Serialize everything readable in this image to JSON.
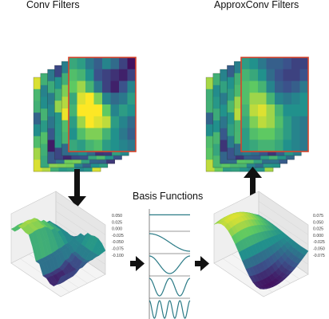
{
  "labels": {
    "conv_filters": "Conv Filters",
    "approx_filters": "ApproxConv Filters",
    "basis_functions": "Basis Functions"
  },
  "left_surface_ticks": [
    "0.050",
    "0.025",
    "0.000",
    "-0.025",
    "-0.050",
    "-0.075",
    "-0.100"
  ],
  "right_surface_ticks": [
    "0.075",
    "0.050",
    "0.025",
    "0.000",
    "-0.025",
    "-0.050",
    "-0.075"
  ],
  "basis_cycles": [
    0,
    1,
    2,
    4,
    8
  ],
  "colors": {
    "filter_border": "#d8442c",
    "arrow": "#111111",
    "basis_line": "#2a7a86",
    "viridis": [
      "#440154",
      "#3b528b",
      "#21918c",
      "#5ec962",
      "#fde725"
    ]
  },
  "filter_grid": [
    [
      0.6,
      0.55,
      0.4,
      0.3,
      0.45,
      0.35,
      0.2,
      0.05
    ],
    [
      0.7,
      0.65,
      0.5,
      0.25,
      0.2,
      0.15,
      0.1,
      0.2
    ],
    [
      0.75,
      0.85,
      0.65,
      0.4,
      0.2,
      0.1,
      0.25,
      0.45
    ],
    [
      0.6,
      0.95,
      1.0,
      0.8,
      0.45,
      0.35,
      0.4,
      0.55
    ],
    [
      0.65,
      1.0,
      1.0,
      1.0,
      0.75,
      0.45,
      0.55,
      0.5
    ],
    [
      0.55,
      0.85,
      1.0,
      0.95,
      0.9,
      0.55,
      0.45,
      0.35
    ],
    [
      0.5,
      0.7,
      0.8,
      0.8,
      0.65,
      0.5,
      0.4,
      0.3
    ],
    [
      0.6,
      0.55,
      0.65,
      0.7,
      0.55,
      0.5,
      0.45,
      0.4
    ]
  ],
  "approx_grid": [
    [
      0.55,
      0.5,
      0.4,
      0.3,
      0.3,
      0.25,
      0.2,
      0.2
    ],
    [
      0.65,
      0.6,
      0.5,
      0.35,
      0.25,
      0.2,
      0.2,
      0.25
    ],
    [
      0.7,
      0.75,
      0.65,
      0.45,
      0.3,
      0.25,
      0.3,
      0.4
    ],
    [
      0.7,
      0.85,
      0.85,
      0.65,
      0.45,
      0.4,
      0.45,
      0.5
    ],
    [
      0.65,
      0.9,
      0.95,
      0.85,
      0.65,
      0.5,
      0.5,
      0.5
    ],
    [
      0.6,
      0.8,
      0.9,
      0.85,
      0.7,
      0.55,
      0.45,
      0.4
    ],
    [
      0.55,
      0.7,
      0.75,
      0.75,
      0.65,
      0.55,
      0.45,
      0.4
    ],
    [
      0.55,
      0.6,
      0.65,
      0.65,
      0.6,
      0.5,
      0.45,
      0.4
    ]
  ]
}
